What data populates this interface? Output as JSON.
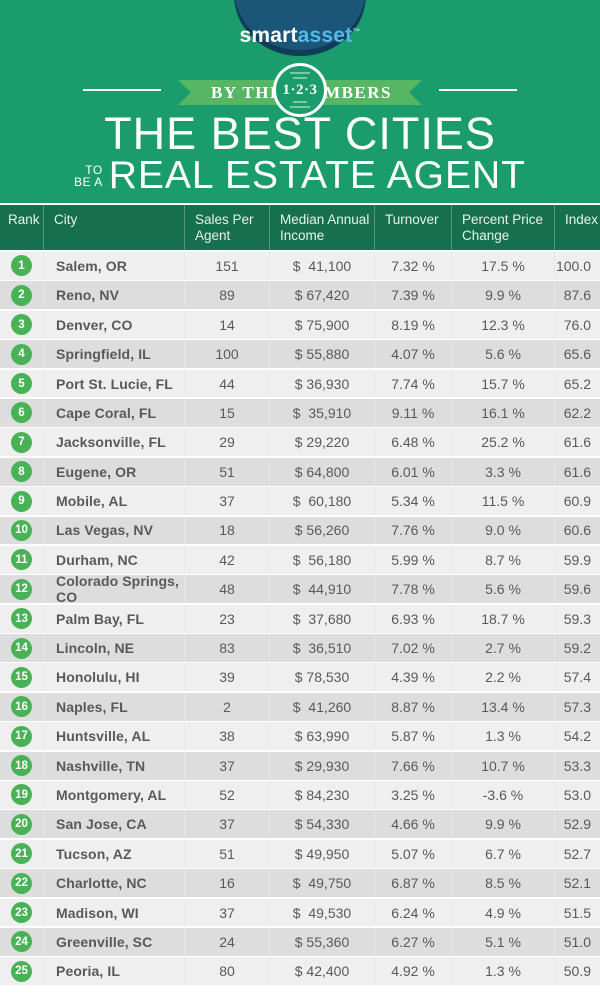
{
  "colors": {
    "page_green": "#1b9c6c",
    "table_header_green": "#166f4e",
    "ribbon_green": "#57b663",
    "badge_green": "#49b257",
    "logo_navy": "#1b5578",
    "logo_asset_blue": "#55b9e8",
    "row_light": "#efefef",
    "row_dark": "#dddddd",
    "text_dark": "#4b4c4f"
  },
  "header": {
    "logo_smart": "smart",
    "logo_asset": "asset",
    "logo_tm": "™",
    "ribbon_left": "BY THE",
    "ribbon_circle": "1·2·3",
    "ribbon_right": "NUMBERS",
    "title_line1": "THE BEST CITIES",
    "title_small_top": "TO",
    "title_small_bottom": "BE A",
    "title_line2": "REAL ESTATE AGENT"
  },
  "table": {
    "columns": [
      "Rank",
      "City",
      "Sales Per Agent",
      "Median Annual Income",
      "Turnover",
      "Percent Price Change",
      "Index"
    ],
    "rows": [
      {
        "rank": "1",
        "city": "Salem, OR",
        "sales": "151",
        "income": "$  41,100",
        "turnover": "7.32 %",
        "price_change": "17.5 %",
        "index": "100.0"
      },
      {
        "rank": "2",
        "city": "Reno, NV",
        "sales": "89",
        "income": "$ 67,420",
        "turnover": "7.39 %",
        "price_change": "9.9 %",
        "index": "87.6"
      },
      {
        "rank": "3",
        "city": "Denver, CO",
        "sales": "14",
        "income": "$ 75,900",
        "turnover": "8.19 %",
        "price_change": "12.3 %",
        "index": "76.0"
      },
      {
        "rank": "4",
        "city": "Springfield, IL",
        "sales": "100",
        "income": "$ 55,880",
        "turnover": "4.07 %",
        "price_change": "5.6 %",
        "index": "65.6"
      },
      {
        "rank": "5",
        "city": "Port St. Lucie, FL",
        "sales": "44",
        "income": "$ 36,930",
        "turnover": "7.74 %",
        "price_change": "15.7 %",
        "index": "65.2"
      },
      {
        "rank": "6",
        "city": "Cape Coral, FL",
        "sales": "15",
        "income": "$  35,910",
        "turnover": "9.11 %",
        "price_change": "16.1 %",
        "index": "62.2"
      },
      {
        "rank": "7",
        "city": "Jacksonville, FL",
        "sales": "29",
        "income": "$ 29,220",
        "turnover": "6.48 %",
        "price_change": "25.2 %",
        "index": "61.6"
      },
      {
        "rank": "8",
        "city": "Eugene, OR",
        "sales": "51",
        "income": "$ 64,800",
        "turnover": "6.01 %",
        "price_change": "3.3 %",
        "index": "61.6"
      },
      {
        "rank": "9",
        "city": "Mobile, AL",
        "sales": "37",
        "income": "$  60,180",
        "turnover": "5.34 %",
        "price_change": "11.5 %",
        "index": "60.9"
      },
      {
        "rank": "10",
        "city": "Las Vegas, NV",
        "sales": "18",
        "income": "$ 56,260",
        "turnover": "7.76 %",
        "price_change": "9.0 %",
        "index": "60.6"
      },
      {
        "rank": "11",
        "city": "Durham, NC",
        "sales": "42",
        "income": "$  56,180",
        "turnover": "5.99 %",
        "price_change": "8.7 %",
        "index": "59.9"
      },
      {
        "rank": "12",
        "city": "Colorado Springs, CO",
        "sales": "48",
        "income": "$  44,910",
        "turnover": "7.78 %",
        "price_change": "5.6 %",
        "index": "59.6"
      },
      {
        "rank": "13",
        "city": "Palm Bay, FL",
        "sales": "23",
        "income": "$  37,680",
        "turnover": "6.93 %",
        "price_change": "18.7 %",
        "index": "59.3"
      },
      {
        "rank": "14",
        "city": "Lincoln, NE",
        "sales": "83",
        "income": "$  36,510",
        "turnover": "7.02 %",
        "price_change": "2.7 %",
        "index": "59.2"
      },
      {
        "rank": "15",
        "city": "Honolulu, HI",
        "sales": "39",
        "income": "$ 78,530",
        "turnover": "4.39 %",
        "price_change": "2.2 %",
        "index": "57.4"
      },
      {
        "rank": "16",
        "city": "Naples, FL",
        "sales": "2",
        "income": "$  41,260",
        "turnover": "8.87 %",
        "price_change": "13.4 %",
        "index": "57.3"
      },
      {
        "rank": "17",
        "city": "Huntsville, AL",
        "sales": "38",
        "income": "$ 63,990",
        "turnover": "5.87 %",
        "price_change": "1.3 %",
        "index": "54.2"
      },
      {
        "rank": "18",
        "city": "Nashville, TN",
        "sales": "37",
        "income": "$ 29,930",
        "turnover": "7.66 %",
        "price_change": "10.7 %",
        "index": "53.3"
      },
      {
        "rank": "19",
        "city": "Montgomery, AL",
        "sales": "52",
        "income": "$ 84,230",
        "turnover": "3.25 %",
        "price_change": "-3.6 %",
        "index": "53.0"
      },
      {
        "rank": "20",
        "city": "San Jose, CA",
        "sales": "37",
        "income": "$ 54,330",
        "turnover": "4.66 %",
        "price_change": "9.9 %",
        "index": "52.9"
      },
      {
        "rank": "21",
        "city": "Tucson, AZ",
        "sales": "51",
        "income": "$ 49,950",
        "turnover": "5.07 %",
        "price_change": "6.7 %",
        "index": "52.7"
      },
      {
        "rank": "22",
        "city": "Charlotte, NC",
        "sales": "16",
        "income": "$  49,750",
        "turnover": "6.87 %",
        "price_change": "8.5 %",
        "index": "52.1"
      },
      {
        "rank": "23",
        "city": "Madison, WI",
        "sales": "37",
        "income": "$  49,530",
        "turnover": "6.24 %",
        "price_change": "4.9 %",
        "index": "51.5"
      },
      {
        "rank": "24",
        "city": "Greenville, SC",
        "sales": "24",
        "income": "$ 55,360",
        "turnover": "6.27 %",
        "price_change": "5.1 %",
        "index": "51.0"
      },
      {
        "rank": "25",
        "city": "Peoria, IL",
        "sales": "80",
        "income": "$ 42,400",
        "turnover": "4.92 %",
        "price_change": "1.3 %",
        "index": "50.9"
      }
    ]
  },
  "chart_data": {
    "type": "table",
    "title": "The Best Cities to Be a Real Estate Agent",
    "subtitle": "By the Numbers",
    "columns": [
      "Rank",
      "City",
      "Sales Per Agent",
      "Median Annual Income ($)",
      "Turnover (%)",
      "Percent Price Change (%)",
      "Index"
    ],
    "rows": [
      [
        1,
        "Salem, OR",
        151,
        41100,
        7.32,
        17.5,
        100.0
      ],
      [
        2,
        "Reno, NV",
        89,
        67420,
        7.39,
        9.9,
        87.6
      ],
      [
        3,
        "Denver, CO",
        14,
        75900,
        8.19,
        12.3,
        76.0
      ],
      [
        4,
        "Springfield, IL",
        100,
        55880,
        4.07,
        5.6,
        65.6
      ],
      [
        5,
        "Port St. Lucie, FL",
        44,
        36930,
        7.74,
        15.7,
        65.2
      ],
      [
        6,
        "Cape Coral, FL",
        15,
        35910,
        9.11,
        16.1,
        62.2
      ],
      [
        7,
        "Jacksonville, FL",
        29,
        29220,
        6.48,
        25.2,
        61.6
      ],
      [
        8,
        "Eugene, OR",
        51,
        64800,
        6.01,
        3.3,
        61.6
      ],
      [
        9,
        "Mobile, AL",
        37,
        60180,
        5.34,
        11.5,
        60.9
      ],
      [
        10,
        "Las Vegas, NV",
        18,
        56260,
        7.76,
        9.0,
        60.6
      ],
      [
        11,
        "Durham, NC",
        42,
        56180,
        5.99,
        8.7,
        59.9
      ],
      [
        12,
        "Colorado Springs, CO",
        48,
        44910,
        7.78,
        5.6,
        59.6
      ],
      [
        13,
        "Palm Bay, FL",
        23,
        37680,
        6.93,
        18.7,
        59.3
      ],
      [
        14,
        "Lincoln, NE",
        83,
        36510,
        7.02,
        2.7,
        59.2
      ],
      [
        15,
        "Honolulu, HI",
        39,
        78530,
        4.39,
        2.2,
        57.4
      ],
      [
        16,
        "Naples, FL",
        2,
        41260,
        8.87,
        13.4,
        57.3
      ],
      [
        17,
        "Huntsville, AL",
        38,
        63990,
        5.87,
        1.3,
        54.2
      ],
      [
        18,
        "Nashville, TN",
        37,
        29930,
        7.66,
        10.7,
        53.3
      ],
      [
        19,
        "Montgomery, AL",
        52,
        84230,
        3.25,
        -3.6,
        53.0
      ],
      [
        20,
        "San Jose, CA",
        37,
        54330,
        4.66,
        9.9,
        52.9
      ],
      [
        21,
        "Tucson, AZ",
        51,
        49950,
        5.07,
        6.7,
        52.7
      ],
      [
        22,
        "Charlotte, NC",
        16,
        49750,
        6.87,
        8.5,
        52.1
      ],
      [
        23,
        "Madison, WI",
        37,
        49530,
        6.24,
        4.9,
        51.5
      ],
      [
        24,
        "Greenville, SC",
        24,
        55360,
        6.27,
        5.1,
        51.0
      ],
      [
        25,
        "Peoria, IL",
        80,
        42400,
        4.92,
        1.3,
        50.9
      ]
    ]
  }
}
